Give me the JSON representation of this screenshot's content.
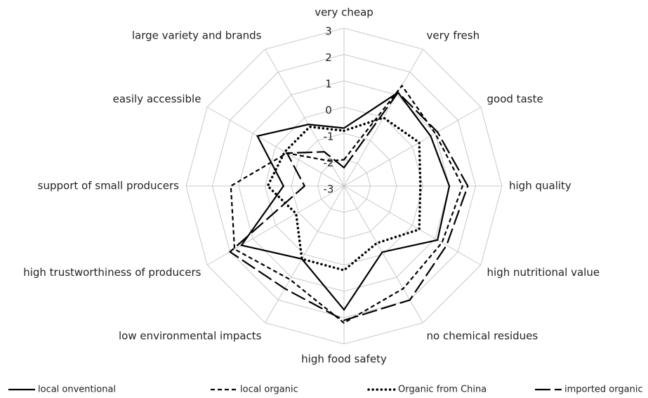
{
  "chart_data": {
    "type": "radar",
    "categories": [
      "very cheap",
      "very fresh",
      "good taste",
      "high quality",
      "high nutritional value",
      "no chemical residues",
      "high food safety",
      "low environmental impacts",
      "high trustworthiness of producers",
      "support of small producers",
      "easily accessible",
      "large variety and brands"
    ],
    "ylim": [
      -3,
      3
    ],
    "yticks": [
      -3,
      -2,
      -1,
      0,
      1,
      2,
      3
    ],
    "grid": true,
    "legend": "bottom",
    "series": [
      {
        "name": "local onventional",
        "color": "#000000",
        "dash": "solid",
        "values": [
          -0.8,
          1.1,
          0.8,
          1.0,
          1.1,
          -0.1,
          1.7,
          0.2,
          1.5,
          -0.7,
          0.8,
          -0.3
        ]
      },
      {
        "name": "local organic",
        "color": "#000000",
        "dash": "dashed",
        "values": [
          -2.0,
          1.4,
          1.0,
          1.5,
          1.3,
          1.5,
          2.2,
          1.1,
          1.8,
          1.3,
          -0.5,
          -1.9
        ]
      },
      {
        "name": "Organic from China",
        "color": "#000000",
        "dash": "dotted",
        "values": [
          -0.9,
          0.0,
          0.3,
          -0.1,
          0.3,
          -0.5,
          0.2,
          0.2,
          -0.9,
          -0.1,
          -0.4,
          -0.4
        ]
      },
      {
        "name": "imported organic",
        "color": "#000000",
        "dash": "longdash",
        "values": [
          -2.3,
          1.1,
          1.1,
          1.7,
          1.5,
          2.0,
          2.1,
          1.5,
          2.0,
          -1.5,
          -0.5,
          -1.5
        ]
      }
    ]
  }
}
